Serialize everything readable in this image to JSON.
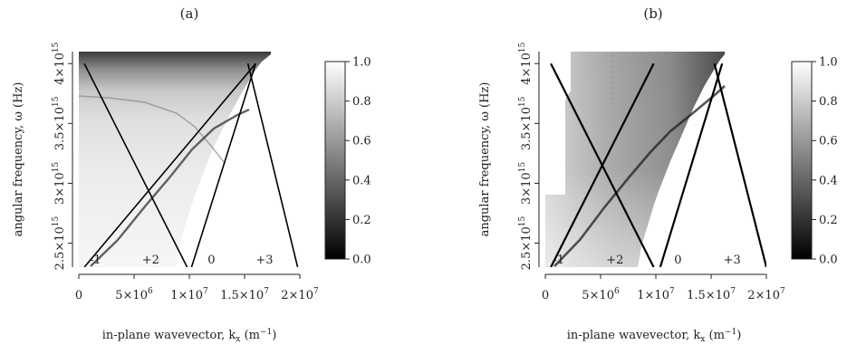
{
  "figure": {
    "panels": [
      {
        "tag": "(a)",
        "xlabel": "in-plane wavevector, k",
        "xlabel_sub": "x",
        "xlabel_unit_pre": " (m",
        "xlabel_unit_sup": "−1",
        "xlabel_unit_post": ")",
        "ylabel": "angular frequency, ω (Hz)"
      },
      {
        "tag": "(b)",
        "xlabel": "in-plane wavevector, k",
        "xlabel_sub": "x",
        "xlabel_unit_pre": " (m",
        "xlabel_unit_sup": "−1",
        "xlabel_unit_post": ")",
        "ylabel": "angular frequency, ω (Hz)"
      }
    ]
  },
  "chart_data": [
    {
      "type": "heatmap",
      "title": "(a)",
      "xlabel": "in-plane wavevector, kx (m−1)",
      "ylabel": "angular frequency, ω (Hz)",
      "xlim": [
        0,
        20000000
      ],
      "ylim": [
        2300000000000000,
        4100000000000000
      ],
      "x_ticks": [
        {
          "value": 0,
          "label": "0"
        },
        {
          "value": 5000000,
          "m": "5",
          "e": "6"
        },
        {
          "value": 10000000,
          "m": "1",
          "e": "7"
        },
        {
          "value": 15000000,
          "m": "1.5",
          "e": "7"
        },
        {
          "value": 20000000,
          "m": "2",
          "e": "7"
        }
      ],
      "y_ticks": [
        {
          "value": 2500000000000000,
          "m": "2.5",
          "e": "15"
        },
        {
          "value": 3000000000000000,
          "m": "3",
          "e": "15"
        },
        {
          "value": 3500000000000000,
          "m": "3.5",
          "e": "15"
        },
        {
          "value": 4000000000000000,
          "m": "4",
          "e": "15"
        }
      ],
      "colorbar": {
        "range": [
          0.0,
          1.0
        ],
        "ticks": [
          "0.0",
          "0.2",
          "0.4",
          "0.6",
          "0.8",
          "1.0"
        ],
        "colormap": "gray (0 black → 1 white)"
      },
      "diffraction_lines": [
        {
          "label": "-1",
          "points": [
            [
              500000,
              2300000000000000
            ],
            [
              16000000,
              4000000000000000
            ]
          ]
        },
        {
          "label": "+2",
          "points": [
            [
              500000,
              4000000000000000
            ],
            [
              9800000,
              2300000000000000
            ]
          ]
        },
        {
          "label": "0",
          "points": [
            [
              10200000,
              2300000000000000
            ],
            [
              16000000,
              4000000000000000
            ]
          ]
        },
        {
          "label": "+3",
          "points": [
            [
              15300000,
              4000000000000000
            ],
            [
              19800000,
              2300000000000000
            ]
          ]
        }
      ],
      "line_label_positions": [
        {
          "text": "-1",
          "x": 1500000,
          "y": 2330000000000000
        },
        {
          "text": "+2",
          "x": 6500000,
          "y": 2330000000000000
        },
        {
          "text": "0",
          "x": 12000000,
          "y": 2330000000000000
        },
        {
          "text": "+3",
          "x": 16800000,
          "y": 2330000000000000
        }
      ]
    },
    {
      "type": "heatmap",
      "title": "(b)",
      "xlabel": "in-plane wavevector, kx (m−1)",
      "ylabel": "angular frequency, ω (Hz)",
      "xlim": [
        0,
        20000000
      ],
      "ylim": [
        2300000000000000,
        4100000000000000
      ],
      "x_ticks": [
        {
          "value": 0,
          "label": "0"
        },
        {
          "value": 5000000,
          "m": "5",
          "e": "6"
        },
        {
          "value": 10000000,
          "m": "1",
          "e": "7"
        },
        {
          "value": 15000000,
          "m": "1.5",
          "e": "7"
        },
        {
          "value": 20000000,
          "m": "2",
          "e": "7"
        }
      ],
      "y_ticks": [
        {
          "value": 2500000000000000,
          "m": "2.5",
          "e": "15"
        },
        {
          "value": 3000000000000000,
          "m": "3",
          "e": "15"
        },
        {
          "value": 3500000000000000,
          "m": "3.5",
          "e": "15"
        },
        {
          "value": 4000000000000000,
          "m": "4",
          "e": "15"
        }
      ],
      "colorbar": {
        "range": [
          0.0,
          1.0
        ],
        "ticks": [
          "0.0",
          "0.2",
          "0.4",
          "0.6",
          "0.8",
          "1.0"
        ],
        "colormap": "gray (0 black → 1 white)"
      },
      "diffraction_lines": [
        {
          "label": "-1",
          "points": [
            [
              500000,
              2300000000000000
            ],
            [
              9800000,
              4000000000000000
            ]
          ]
        },
        {
          "label": "+2",
          "points": [
            [
              500000,
              4000000000000000
            ],
            [
              9800000,
              2300000000000000
            ]
          ]
        },
        {
          "label": "0",
          "points": [
            [
              10400000,
              2300000000000000
            ],
            [
              16000000,
              4000000000000000
            ]
          ]
        },
        {
          "label": "+3",
          "points": [
            [
              15300000,
              4000000000000000
            ],
            [
              20000000,
              2300000000000000
            ]
          ]
        }
      ],
      "line_label_positions": [
        {
          "text": "-1",
          "x": 1200000,
          "y": 2330000000000000
        },
        {
          "text": "+2",
          "x": 6300000,
          "y": 2330000000000000
        },
        {
          "text": "0",
          "x": 12000000,
          "y": 2330000000000000
        },
        {
          "text": "+3",
          "x": 16900000,
          "y": 2330000000000000
        }
      ]
    }
  ]
}
